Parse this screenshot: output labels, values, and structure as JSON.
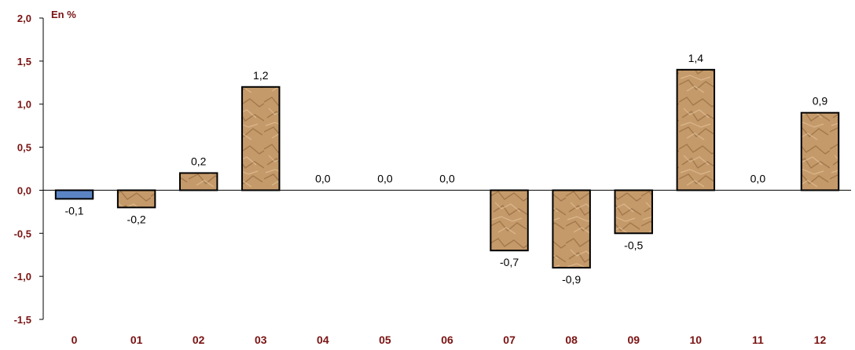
{
  "colors": {
    "bar_fill": "#c59a6a",
    "bar_fill_dark": "#8a6238",
    "bar_fill_light": "#e3c49c",
    "first_bar_fill": "#5b84c4",
    "bar_stroke": "#000000",
    "axis_text": "#7a1212"
  },
  "chart_data": {
    "type": "bar",
    "unit_label": "En %",
    "categories": [
      "0",
      "01",
      "02",
      "03",
      "04",
      "05",
      "06",
      "07",
      "08",
      "09",
      "10",
      "11",
      "12"
    ],
    "values": [
      -0.1,
      -0.2,
      0.2,
      1.2,
      0.0,
      0.0,
      0.0,
      -0.7,
      -0.9,
      -0.5,
      1.4,
      0.0,
      0.9
    ],
    "value_labels": [
      "-0,1",
      "-0,2",
      "0,2",
      "1,2",
      "0,0",
      "0,0",
      "0,0",
      "-0,7",
      "-0,9",
      "-0,5",
      "1,4",
      "0,0",
      "0,9"
    ],
    "yticks": [
      2.0,
      1.5,
      1.0,
      0.5,
      0.0,
      -0.5,
      -1.0,
      -1.5
    ],
    "ytick_labels": [
      "2,0",
      "1,5",
      "1,0",
      "0,5",
      "0,0",
      "-0,5",
      "-1,0",
      "-1,5"
    ],
    "ylim": [
      -1.5,
      2.0
    ],
    "grid": false,
    "legend": "none",
    "title": "",
    "xlabel": "",
    "ylabel": ""
  }
}
